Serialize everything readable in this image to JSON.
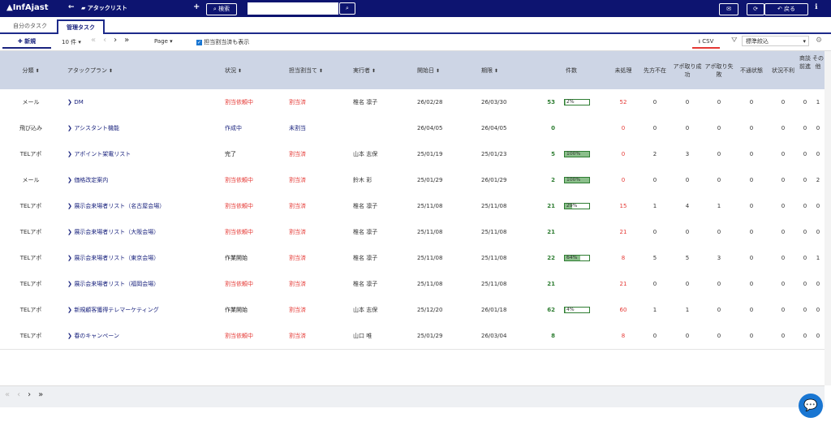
{
  "header": {
    "logo": "InfAjast",
    "title": "アタックリスト",
    "search_button": "検索",
    "back_button": "戻る"
  },
  "tabs": [
    "自分のタスク",
    "管理タスク"
  ],
  "toolbar": {
    "new_button": "新規",
    "page_size": "10 件",
    "page_menu": "Page",
    "show_assigned": "担当割当済も表示",
    "csv_button": "CSV",
    "filter": "標準絞込"
  },
  "table": {
    "columns": [
      "分類",
      "アタックプラン",
      "状況",
      "担当割当て",
      "実行者",
      "開始日",
      "期限",
      "件数",
      "未処理",
      "先方不在",
      "アポ取り成功",
      "アポ取り失敗",
      "不通状態",
      "状況不利",
      "商談前進",
      "その他"
    ],
    "rows": [
      {
        "category": "メール",
        "plan": "DM",
        "status": "割当依頼中",
        "status_color": "#e53935",
        "assignment": "割当済",
        "assignment_color": "#e53935",
        "executor": "椎名 凛子",
        "start": "26/02/28",
        "due": "26/03/30",
        "count": 53,
        "progress": 2,
        "progress_label": "2%",
        "unprocessed": 52,
        "absent": 0,
        "appt_success": 0,
        "appt_fail": 0,
        "unreachable": 0,
        "unfavorable": 0,
        "deal_progress": 0,
        "other": 1
      },
      {
        "category": "飛び込み",
        "plan": "アシスタント機能",
        "status": "作成中",
        "status_color": "#1a237e",
        "assignment": "未割当",
        "assignment_color": "#1a237e",
        "executor": null,
        "start": "26/04/05",
        "due": "26/04/05",
        "count": 0,
        "progress": null,
        "progress_label": null,
        "unprocessed": 0,
        "absent": 0,
        "appt_success": 0,
        "appt_fail": 0,
        "unreachable": 0,
        "unfavorable": 0,
        "deal_progress": 0,
        "other": 0
      },
      {
        "category": "TELアポ",
        "plan": "アポイント架電リスト",
        "status": "完了",
        "status_color": "#222",
        "assignment": "割当済",
        "assignment_color": "#e53935",
        "executor": "山本 志保",
        "start": "25/01/19",
        "due": "25/01/23",
        "count": 5,
        "progress": 100,
        "progress_label": "100%",
        "unprocessed": 0,
        "absent": 2,
        "appt_success": 3,
        "appt_fail": 0,
        "unreachable": 0,
        "unfavorable": 0,
        "deal_progress": 0,
        "other": 0
      },
      {
        "category": "メール",
        "plan": "価格改定案内",
        "status": "割当依頼中",
        "status_color": "#e53935",
        "assignment": "割当済",
        "assignment_color": "#e53935",
        "executor": "鈴木 彩",
        "start": "25/01/29",
        "due": "26/01/29",
        "count": 2,
        "progress": 100,
        "progress_label": "100%",
        "unprocessed": 0,
        "absent": 0,
        "appt_success": 0,
        "appt_fail": 0,
        "unreachable": 0,
        "unfavorable": 0,
        "deal_progress": 0,
        "other": 2
      },
      {
        "category": "TELアポ",
        "plan": "展示会来場者リスト（名古屋会場）",
        "status": "割当依頼中",
        "status_color": "#e53935",
        "assignment": "割当済",
        "assignment_color": "#e53935",
        "executor": "椎名 凛子",
        "start": "25/11/08",
        "due": "25/11/08",
        "count": 21,
        "progress": 29,
        "progress_label": "29%",
        "unprocessed": 15,
        "absent": 1,
        "appt_success": 4,
        "appt_fail": 1,
        "unreachable": 0,
        "unfavorable": 0,
        "deal_progress": 0,
        "other": 0
      },
      {
        "category": "TELアポ",
        "plan": "展示会来場者リスト（大阪会場）",
        "status": "割当依頼中",
        "status_color": "#e53935",
        "assignment": "割当済",
        "assignment_color": "#e53935",
        "executor": "椎名 凛子",
        "start": "25/11/08",
        "due": "25/11/08",
        "count": 21,
        "progress": null,
        "progress_label": null,
        "unprocessed": 21,
        "absent": 0,
        "appt_success": 0,
        "appt_fail": 0,
        "unreachable": 0,
        "unfavorable": 0,
        "deal_progress": 0,
        "other": 0
      },
      {
        "category": "TELアポ",
        "plan": "展示会来場者リスト（東京会場）",
        "status": "作業開始",
        "status_color": "#222",
        "assignment": "割当済",
        "assignment_color": "#e53935",
        "executor": "椎名 凛子",
        "start": "25/11/08",
        "due": "25/11/08",
        "count": 22,
        "progress": 64,
        "progress_label": "64%",
        "unprocessed": 8,
        "absent": 5,
        "appt_success": 5,
        "appt_fail": 3,
        "unreachable": 0,
        "unfavorable": 0,
        "deal_progress": 0,
        "other": 1
      },
      {
        "category": "TELアポ",
        "plan": "展示会来場者リスト（福岡会場）",
        "status": "割当依頼中",
        "status_color": "#e53935",
        "assignment": "割当済",
        "assignment_color": "#e53935",
        "executor": "椎名 凛子",
        "start": "25/11/08",
        "due": "25/11/08",
        "count": 21,
        "progress": null,
        "progress_label": null,
        "unprocessed": 21,
        "absent": 0,
        "appt_success": 0,
        "appt_fail": 0,
        "unreachable": 0,
        "unfavorable": 0,
        "deal_progress": 0,
        "other": 0
      },
      {
        "category": "TELアポ",
        "plan": "新規顧客獲得テレマーケティング",
        "status": "作業開始",
        "status_color": "#222",
        "assignment": "割当済",
        "assignment_color": "#e53935",
        "executor": "山本 志保",
        "start": "25/12/20",
        "due": "26/01/18",
        "count": 62,
        "progress": 4,
        "progress_label": "4%",
        "unprocessed": 60,
        "absent": 1,
        "appt_success": 1,
        "appt_fail": 0,
        "unreachable": 0,
        "unfavorable": 0,
        "deal_progress": 0,
        "other": 0
      },
      {
        "category": "TELアポ",
        "plan": "春のキャンペーン",
        "status": "割当依頼中",
        "status_color": "#e53935",
        "assignment": "割当済",
        "assignment_color": "#e53935",
        "executor": "山口 唯",
        "start": "25/01/29",
        "due": "26/03/04",
        "count": 8,
        "progress": null,
        "progress_label": null,
        "unprocessed": 8,
        "absent": 0,
        "appt_success": 0,
        "appt_fail": 0,
        "unreachable": 0,
        "unfavorable": 0,
        "deal_progress": 0,
        "other": 0
      }
    ]
  }
}
